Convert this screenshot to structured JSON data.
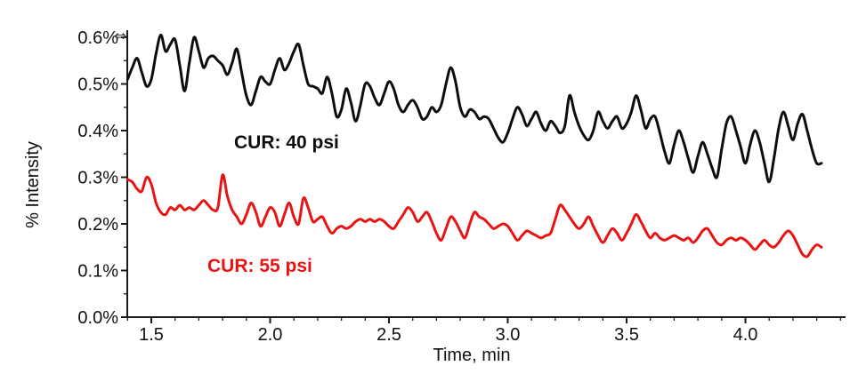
{
  "figure": {
    "axis_marker_icon": "⇔"
  },
  "chart_data": {
    "type": "line",
    "title": "",
    "xlabel": "Time, min",
    "ylabel": "% Intensity",
    "xlim": [
      1.39,
      4.42
    ],
    "ylim": [
      0.0,
      0.62
    ],
    "grid": false,
    "legend_position": "inline text annotations on plot",
    "x_ticks": [
      {
        "v": 1.5,
        "label": "1.5"
      },
      {
        "v": 2.0,
        "label": "2.0"
      },
      {
        "v": 2.5,
        "label": "2.5"
      },
      {
        "v": 3.0,
        "label": "3.0"
      },
      {
        "v": 3.5,
        "label": "3.5"
      },
      {
        "v": 4.0,
        "label": "4.0"
      }
    ],
    "x_minor_ticks": {
      "start": 1.4,
      "end": 4.4,
      "step": 0.1
    },
    "y_ticks": [
      {
        "v": 0.0,
        "label": "0.0%"
      },
      {
        "v": 0.1,
        "label": "0.1%"
      },
      {
        "v": 0.2,
        "label": "0.2%"
      },
      {
        "v": 0.3,
        "label": "0.3%"
      },
      {
        "v": 0.4,
        "label": "0.4%"
      },
      {
        "v": 0.5,
        "label": "0.5%"
      },
      {
        "v": 0.6,
        "label": "0.6%"
      }
    ],
    "y_minor_ticks": {
      "start": 0.05,
      "end": 0.55,
      "step": 0.1
    },
    "axis_color": "#1a1a1a",
    "series": [
      {
        "name": "CUR: 40 psi",
        "color": "#0d0d0d",
        "x_start": 1.4,
        "x_step": 0.02,
        "values": [
          0.51,
          0.535,
          0.555,
          0.525,
          0.495,
          0.51,
          0.565,
          0.605,
          0.57,
          0.585,
          0.595,
          0.54,
          0.485,
          0.545,
          0.6,
          0.57,
          0.535,
          0.555,
          0.56,
          0.55,
          0.54,
          0.52,
          0.545,
          0.575,
          0.525,
          0.475,
          0.455,
          0.485,
          0.515,
          0.505,
          0.5,
          0.53,
          0.555,
          0.53,
          0.545,
          0.57,
          0.585,
          0.54,
          0.5,
          0.495,
          0.49,
          0.48,
          0.515,
          0.48,
          0.43,
          0.445,
          0.49,
          0.46,
          0.42,
          0.455,
          0.5,
          0.495,
          0.47,
          0.455,
          0.48,
          0.505,
          0.49,
          0.455,
          0.44,
          0.455,
          0.465,
          0.45,
          0.425,
          0.43,
          0.45,
          0.44,
          0.455,
          0.5,
          0.535,
          0.505,
          0.45,
          0.43,
          0.445,
          0.44,
          0.425,
          0.43,
          0.425,
          0.405,
          0.385,
          0.375,
          0.395,
          0.425,
          0.45,
          0.435,
          0.41,
          0.425,
          0.44,
          0.415,
          0.4,
          0.42,
          0.41,
          0.395,
          0.41,
          0.475,
          0.44,
          0.41,
          0.39,
          0.38,
          0.4,
          0.44,
          0.42,
          0.405,
          0.42,
          0.43,
          0.405,
          0.415,
          0.44,
          0.475,
          0.445,
          0.405,
          0.425,
          0.43,
          0.395,
          0.355,
          0.33,
          0.37,
          0.4,
          0.375,
          0.34,
          0.31,
          0.345,
          0.375,
          0.35,
          0.32,
          0.3,
          0.36,
          0.415,
          0.43,
          0.4,
          0.365,
          0.33,
          0.37,
          0.4,
          0.375,
          0.33,
          0.29,
          0.34,
          0.405,
          0.44,
          0.41,
          0.38,
          0.415,
          0.435,
          0.4,
          0.36,
          0.33,
          0.33
        ]
      },
      {
        "name": "CUR: 55 psi",
        "color": "#e81414",
        "x_start": 1.4,
        "x_step": 0.02,
        "values": [
          0.295,
          0.29,
          0.275,
          0.27,
          0.3,
          0.285,
          0.245,
          0.225,
          0.22,
          0.235,
          0.23,
          0.24,
          0.23,
          0.235,
          0.23,
          0.24,
          0.25,
          0.24,
          0.23,
          0.235,
          0.305,
          0.26,
          0.23,
          0.215,
          0.2,
          0.22,
          0.245,
          0.225,
          0.195,
          0.215,
          0.235,
          0.225,
          0.195,
          0.22,
          0.245,
          0.215,
          0.2,
          0.255,
          0.235,
          0.205,
          0.21,
          0.215,
          0.195,
          0.18,
          0.19,
          0.195,
          0.19,
          0.195,
          0.205,
          0.21,
          0.205,
          0.21,
          0.205,
          0.21,
          0.205,
          0.195,
          0.19,
          0.205,
          0.22,
          0.235,
          0.225,
          0.205,
          0.215,
          0.225,
          0.205,
          0.18,
          0.165,
          0.19,
          0.215,
          0.205,
          0.185,
          0.17,
          0.2,
          0.225,
          0.215,
          0.21,
          0.2,
          0.19,
          0.195,
          0.2,
          0.195,
          0.18,
          0.165,
          0.175,
          0.185,
          0.18,
          0.175,
          0.17,
          0.175,
          0.18,
          0.21,
          0.24,
          0.23,
          0.215,
          0.2,
          0.19,
          0.2,
          0.215,
          0.195,
          0.175,
          0.16,
          0.175,
          0.19,
          0.18,
          0.165,
          0.18,
          0.2,
          0.22,
          0.205,
          0.185,
          0.17,
          0.18,
          0.17,
          0.165,
          0.17,
          0.175,
          0.17,
          0.165,
          0.17,
          0.16,
          0.17,
          0.185,
          0.19,
          0.175,
          0.16,
          0.155,
          0.165,
          0.17,
          0.165,
          0.17,
          0.165,
          0.155,
          0.145,
          0.155,
          0.165,
          0.155,
          0.15,
          0.16,
          0.175,
          0.185,
          0.175,
          0.155,
          0.135,
          0.13,
          0.145,
          0.155,
          0.15
        ]
      }
    ]
  }
}
